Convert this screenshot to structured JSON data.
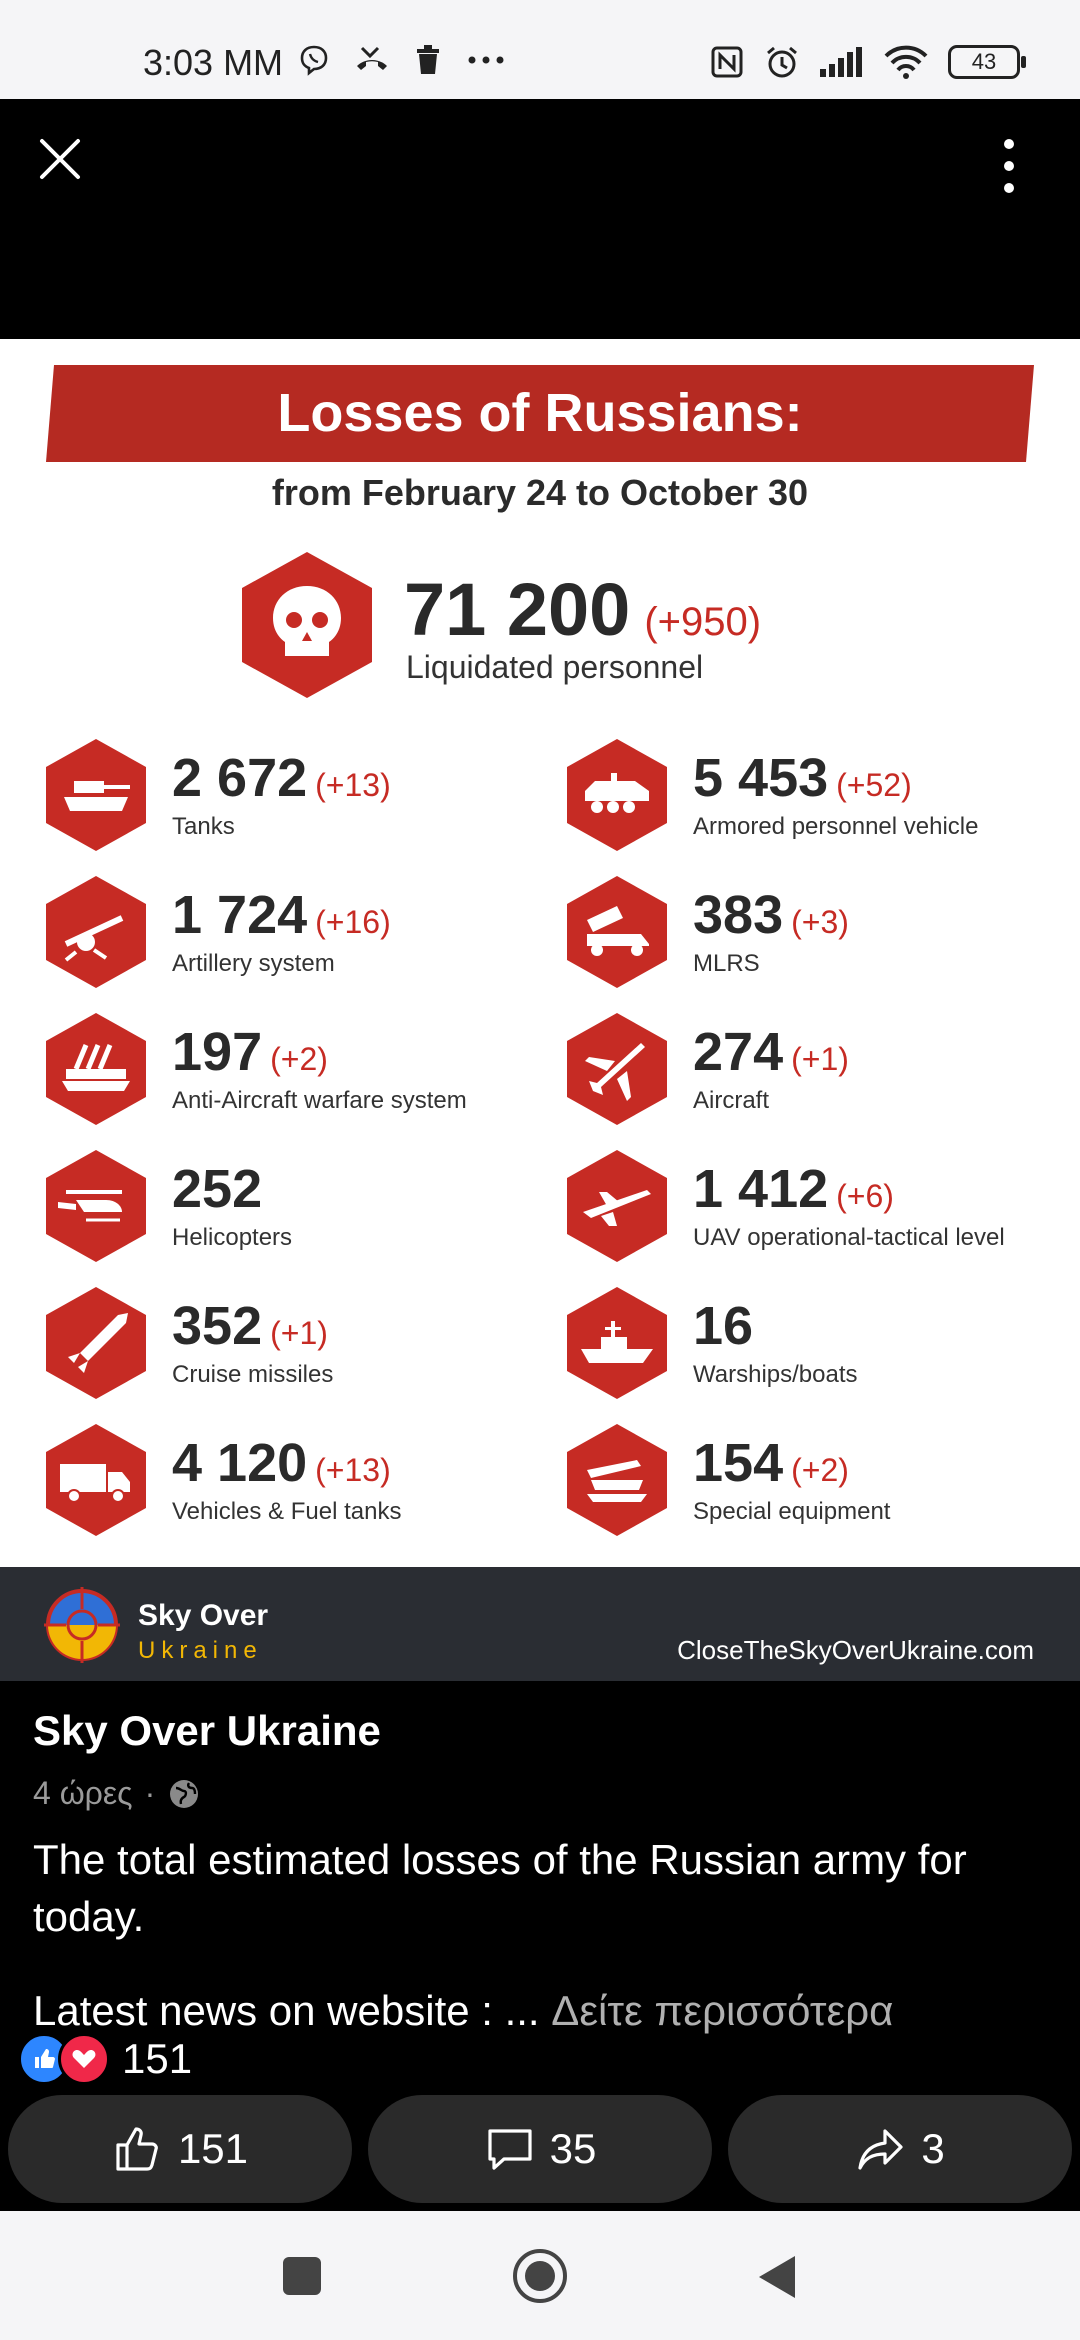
{
  "status_bar": {
    "time": "3:03 MM",
    "battery": "43"
  },
  "infographic": {
    "title": "Losses of Russians:",
    "subtitle": "from February 24 to October 30",
    "hero": {
      "value": "71 200",
      "delta": "(+950)",
      "label": "Liquidated personnel",
      "icon": "skull-icon"
    },
    "stats": [
      {
        "value": "2 672",
        "delta": "(+13)",
        "label": "Tanks",
        "icon": "tank-icon"
      },
      {
        "value": "5 453",
        "delta": "(+52)",
        "label": "Armored personnel vehicle",
        "icon": "apv-icon"
      },
      {
        "value": "1 724",
        "delta": "(+16)",
        "label": "Artillery system",
        "icon": "artillery-icon"
      },
      {
        "value": "383",
        "delta": "(+3)",
        "label": "MLRS",
        "icon": "mlrs-icon"
      },
      {
        "value": "197",
        "delta": "(+2)",
        "label": "Anti-Aircraft warfare system",
        "icon": "anti-aircraft-icon"
      },
      {
        "value": "274",
        "delta": "(+1)",
        "label": "Aircraft",
        "icon": "aircraft-icon"
      },
      {
        "value": "252",
        "delta": "",
        "label": "Helicopters",
        "icon": "helicopter-icon"
      },
      {
        "value": "1 412",
        "delta": "(+6)",
        "label": "UAV operational-tactical level",
        "icon": "uav-icon"
      },
      {
        "value": "352",
        "delta": "(+1)",
        "label": "Cruise missiles",
        "icon": "missile-icon"
      },
      {
        "value": "16",
        "delta": "",
        "label": "Warships/boats",
        "icon": "warship-icon"
      },
      {
        "value": "4 120",
        "delta": "(+13)",
        "label": "Vehicles & Fuel tanks",
        "icon": "truck-icon"
      },
      {
        "value": "154",
        "delta": "(+2)",
        "label": "Special equipment",
        "icon": "special-equipment-icon"
      }
    ],
    "footer": {
      "brand_line1": "Sky Over",
      "brand_line2": "Ukraine",
      "website": "CloseTheSkyOverUkraine.com"
    }
  },
  "post": {
    "author": "Sky Over Ukraine",
    "time": "4 ώρες",
    "text": "The total estimated losses of the Russian army for today.",
    "more_prefix": "Latest news on website : ...",
    "see_more": "Δείτε περισσότερα",
    "reaction_count": "151"
  },
  "actions": {
    "like_count": "151",
    "comment_count": "35",
    "share_count": "3"
  },
  "colors": {
    "accent_red": "#c62b24",
    "banner_red": "#b52a22",
    "footer_bg": "#2a2d33",
    "brand_yellow": "#f2b705"
  }
}
